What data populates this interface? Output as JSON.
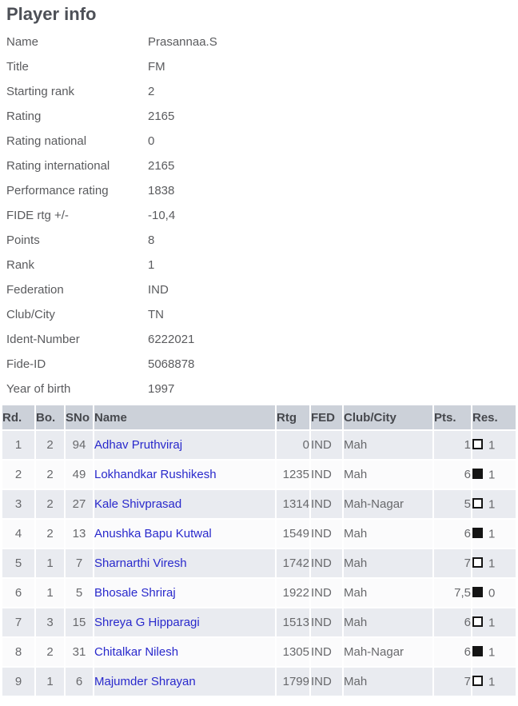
{
  "page": {
    "title": "Player info"
  },
  "colors": {
    "link_blue": "#2929cc",
    "table_header_bg": "#ccd1d9",
    "row_stripe": "#e9ebf0",
    "text_gray": "#5a5b5e"
  },
  "player_info": {
    "rows": [
      {
        "label": "Name",
        "value": "Prasannaa.S"
      },
      {
        "label": "Title",
        "value": "FM"
      },
      {
        "label": "Starting rank",
        "value": "2"
      },
      {
        "label": "Rating",
        "value": "2165"
      },
      {
        "label": "Rating national",
        "value": "0"
      },
      {
        "label": "Rating international",
        "value": "2165"
      },
      {
        "label": "Performance rating",
        "value": "1838"
      },
      {
        "label": "FIDE rtg +/-",
        "value": "-10,4"
      },
      {
        "label": "Points",
        "value": "8"
      },
      {
        "label": "Rank",
        "value": "1"
      },
      {
        "label": "Federation",
        "value": "IND"
      },
      {
        "label": "Club/City",
        "value": "TN"
      },
      {
        "label": "Ident-Number",
        "value": "6222021"
      },
      {
        "label": "Fide-ID",
        "value": "5068878"
      },
      {
        "label": "Year of birth",
        "value": "1997"
      }
    ]
  },
  "results_table": {
    "headers": [
      "Rd.",
      "Bo.",
      "SNo",
      "Name",
      "Rtg",
      "FED",
      "Club/City",
      "Pts.",
      "Res."
    ],
    "rows": [
      {
        "rd": "1",
        "bo": "2",
        "sno": "94",
        "name": "Adhav Pruthviraj",
        "rtg": "0",
        "fed": "IND",
        "club": "Mah",
        "pts": "1",
        "piece_color": "white",
        "res": "1"
      },
      {
        "rd": "2",
        "bo": "2",
        "sno": "49",
        "name": "Lokhandkar Rushikesh",
        "rtg": "1235",
        "fed": "IND",
        "club": "Mah",
        "pts": "6",
        "piece_color": "black",
        "res": "1"
      },
      {
        "rd": "3",
        "bo": "2",
        "sno": "27",
        "name": "Kale Shivprasad",
        "rtg": "1314",
        "fed": "IND",
        "club": "Mah-Nagar",
        "pts": "5",
        "piece_color": "white",
        "res": "1"
      },
      {
        "rd": "4",
        "bo": "2",
        "sno": "13",
        "name": "Anushka Bapu Kutwal",
        "rtg": "1549",
        "fed": "IND",
        "club": "Mah",
        "pts": "6",
        "piece_color": "black",
        "res": "1"
      },
      {
        "rd": "5",
        "bo": "1",
        "sno": "7",
        "name": "Sharnarthi Viresh",
        "rtg": "1742",
        "fed": "IND",
        "club": "Mah",
        "pts": "7",
        "piece_color": "white",
        "res": "1"
      },
      {
        "rd": "6",
        "bo": "1",
        "sno": "5",
        "name": "Bhosale Shriraj",
        "rtg": "1922",
        "fed": "IND",
        "club": "Mah",
        "pts": "7,5",
        "piece_color": "black",
        "res": "0"
      },
      {
        "rd": "7",
        "bo": "3",
        "sno": "15",
        "name": "Shreya G Hipparagi",
        "rtg": "1513",
        "fed": "IND",
        "club": "Mah",
        "pts": "6",
        "piece_color": "white",
        "res": "1"
      },
      {
        "rd": "8",
        "bo": "2",
        "sno": "31",
        "name": "Chitalkar Nilesh",
        "rtg": "1305",
        "fed": "IND",
        "club": "Mah-Nagar",
        "pts": "6",
        "piece_color": "black",
        "res": "1"
      },
      {
        "rd": "9",
        "bo": "1",
        "sno": "6",
        "name": "Majumder Shrayan",
        "rtg": "1799",
        "fed": "IND",
        "club": "Mah",
        "pts": "7",
        "piece_color": "white",
        "res": "1"
      }
    ]
  }
}
